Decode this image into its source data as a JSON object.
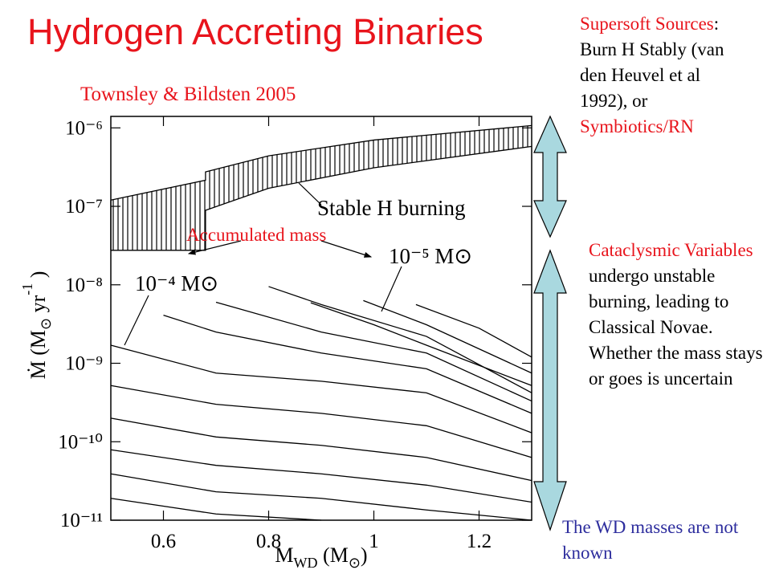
{
  "title": "Hydrogen Accreting Binaries",
  "citation": "Townsley & Bildsten 2005",
  "notes": [
    {
      "segments": [
        {
          "text": "Supersoft Sources",
          "color": "#e8141c"
        },
        {
          "text": ": Burn H Stably (van den Heuvel et al 1992), or ",
          "color": "#000000"
        },
        {
          "text": "Symbiotics/RN",
          "color": "#e8141c"
        }
      ]
    },
    {
      "segments": [
        {
          "text": "Cataclysmic Variables",
          "color": "#e8141c"
        },
        {
          "text": " undergo unstable burning, leading to Classical Novae. Whether the mass stays or goes is uncertain",
          "color": "#000000"
        }
      ]
    },
    {
      "segments": [
        {
          "text": "The WD masses are not known",
          "color": "#2e2e9e"
        }
      ]
    }
  ],
  "chart_data": {
    "type": "line",
    "log_y": true,
    "color": "#000000",
    "xlim": [
      0.5,
      1.3
    ],
    "ylim": [
      1e-11,
      1.4e-06
    ],
    "xticks": [
      0.6,
      0.8,
      1,
      1.2
    ],
    "yticks": [
      {
        "value": 1e-06,
        "label": "10⁻⁶"
      },
      {
        "value": 1e-07,
        "label": "10⁻⁷"
      },
      {
        "value": 1e-08,
        "label": "10⁻⁸"
      },
      {
        "value": 1e-09,
        "label": "10⁻⁹"
      },
      {
        "value": 1e-10,
        "label": "10⁻¹⁰"
      },
      {
        "value": 1e-11,
        "label": "10⁻¹¹"
      }
    ],
    "xlabel": [
      "M",
      "WD",
      " (M",
      "⊙",
      ")"
    ],
    "ylabel": [
      "Ṁ (M",
      "⊙",
      " yr",
      "-1",
      " )"
    ],
    "band": {
      "x": [
        0.5,
        0.68,
        0.68,
        0.8,
        1.0,
        1.3
      ],
      "upper": [
        1.2e-07,
        2.15e-07,
        2.75e-07,
        4.4e-07,
        7e-07,
        1.07e-06
      ],
      "lower": [
        2.75e-08,
        2.75e-08,
        8.9e-08,
        1.7e-07,
        3.1e-07,
        5.8e-07
      ]
    },
    "series": [
      {
        "x": [
          0.5,
          0.7,
          0.9,
          1.1,
          1.3
        ],
        "values": [
          1.7e-09,
          7.5e-10,
          5.9e-10,
          4.2e-10,
          1.3e-10
        ]
      },
      {
        "x": [
          0.5,
          0.7,
          0.9,
          1.1,
          1.3
        ],
        "values": [
          5.2e-10,
          3e-10,
          2.3e-10,
          1.6e-10,
          6.3e-11
        ]
      },
      {
        "x": [
          0.5,
          0.7,
          0.9,
          1.1,
          1.3
        ],
        "values": [
          2e-10,
          1.15e-10,
          9e-11,
          6.3e-11,
          3.2e-11
        ]
      },
      {
        "x": [
          0.5,
          0.7,
          0.9,
          1.1,
          1.3
        ],
        "values": [
          7.9e-11,
          5e-11,
          3.9e-11,
          2.8e-11,
          1.7e-11
        ]
      },
      {
        "x": [
          0.5,
          0.7,
          0.9,
          1.1,
          1.3
        ],
        "values": [
          3.9e-11,
          2.3e-11,
          1.9e-11,
          1.35e-11,
          1e-11
        ]
      },
      {
        "x": [
          0.5,
          0.7,
          0.9
        ],
        "values": [
          1.9e-11,
          1.2e-11,
          1e-11
        ]
      },
      {
        "x": [
          0.6,
          0.7,
          0.9,
          1.1,
          1.3
        ],
        "values": [
          4.1e-09,
          2.5e-09,
          1.35e-09,
          8.5e-10,
          2.3e-10
        ]
      },
      {
        "x": [
          0.7,
          0.9,
          1.1,
          1.3
        ],
        "values": [
          6e-09,
          2.5e-09,
          1.35e-09,
          3.3e-10
        ]
      },
      {
        "x": [
          0.8,
          0.9,
          1.1,
          1.3
        ],
        "values": [
          9.5e-09,
          5.6e-09,
          2.2e-09,
          4.2e-10
        ]
      },
      {
        "x": [
          0.88,
          1.0,
          1.1,
          1.3
        ],
        "values": [
          5.9e-09,
          3.1e-09,
          1.7e-09,
          5.2e-10
        ]
      },
      {
        "x": [
          0.98,
          1.1,
          1.3
        ],
        "values": [
          6.3e-09,
          3.1e-09,
          7.5e-10
        ]
      },
      {
        "x": [
          1.08,
          1.2,
          1.3
        ],
        "values": [
          5.6e-09,
          2.8e-09,
          1.2e-09
        ]
      }
    ],
    "annotations": [
      {
        "text": "Stable H burning",
        "color": "#000000"
      },
      {
        "text": "Accumulated  mass",
        "color": "#e8141c"
      },
      {
        "text": "10⁻⁴ M⊙",
        "color": "#000000"
      },
      {
        "text": "10⁻⁵ M⊙",
        "color": "#000000"
      }
    ]
  }
}
